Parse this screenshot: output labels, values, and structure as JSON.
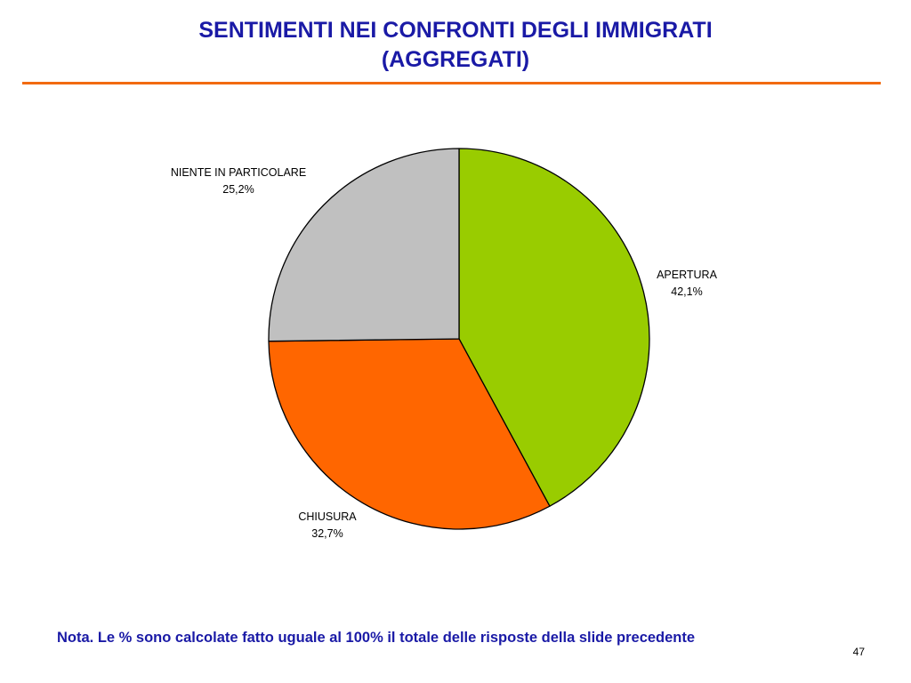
{
  "slide": {
    "title_line1": "SENTIMENTI NEI CONFRONTI DEGLI IMMIGRATI",
    "title_line2": "(AGGREGATI)",
    "note": "Nota. Le % sono calcolate fatto uguale al 100% il totale delle risposte della slide precedente",
    "page_number": "47",
    "colors": {
      "title": "#1a1aa6",
      "rule": "#f26a10"
    }
  },
  "chart_data": {
    "type": "pie",
    "slices": [
      {
        "label": "APERTURA",
        "value": 42.1,
        "value_label": "42,1%",
        "color": "#99cc00"
      },
      {
        "label": "CHIUSURA",
        "value": 32.7,
        "value_label": "32,7%",
        "color": "#ff6600"
      },
      {
        "label": "NIENTE IN PARTICOLARE",
        "value": 25.2,
        "value_label": "25,2%",
        "color": "#c0c0c0"
      }
    ],
    "start_angle": "12 o'clock",
    "direction": "clockwise",
    "legend": "none",
    "data_labels": "outside"
  }
}
